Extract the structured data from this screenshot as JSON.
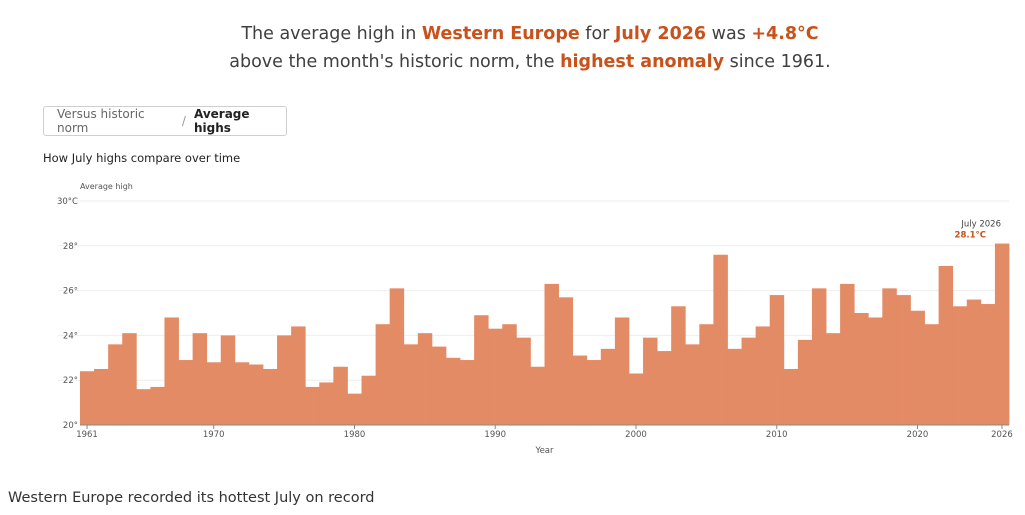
{
  "headline": {
    "part1": "The average high in ",
    "region": "Western Europe",
    "part2": " for ",
    "month": "July 2026",
    "part3": " was ",
    "anomaly": "+4.8°C",
    "part4": "above the month's historic norm, the ",
    "highest": "highest anomaly",
    "part5": " since 1961."
  },
  "toggle": {
    "option1": "Versus historic norm",
    "separator": "/",
    "option2": "Average highs"
  },
  "chart_title": "How July highs compare over time",
  "footer": "Western Europe recorded its hottest July on record",
  "colors": {
    "bar": "#e38b65",
    "accent": "#c8511c",
    "grid": "#eeeeee"
  },
  "chart_data": {
    "type": "bar",
    "ylabel": "Average high",
    "xlabel": "Year",
    "ylim": [
      20,
      30
    ],
    "yticks": [
      {
        "value": 20,
        "label": "20°"
      },
      {
        "value": 22,
        "label": "22°"
      },
      {
        "value": 24,
        "label": "24°"
      },
      {
        "value": 26,
        "label": "26°"
      },
      {
        "value": 28,
        "label": "28°"
      },
      {
        "value": 30,
        "label": "30°C"
      }
    ],
    "xticks": [
      "1961",
      "1970",
      "1980",
      "1990",
      "2000",
      "2010",
      "2020",
      "2026"
    ],
    "annotation": {
      "label": "July 2026",
      "value_label": "28.1°C"
    },
    "years": [
      1961,
      1962,
      1963,
      1964,
      1965,
      1966,
      1967,
      1968,
      1969,
      1970,
      1971,
      1972,
      1973,
      1974,
      1975,
      1976,
      1977,
      1978,
      1979,
      1980,
      1981,
      1982,
      1983,
      1984,
      1985,
      1986,
      1987,
      1988,
      1989,
      1990,
      1991,
      1992,
      1993,
      1994,
      1995,
      1996,
      1997,
      1998,
      1999,
      2000,
      2001,
      2002,
      2003,
      2004,
      2005,
      2006,
      2007,
      2008,
      2009,
      2010,
      2011,
      2012,
      2013,
      2014,
      2015,
      2016,
      2017,
      2018,
      2019,
      2020,
      2021,
      2022,
      2023,
      2024,
      2025,
      2026
    ],
    "values": [
      22.4,
      22.5,
      23.6,
      24.1,
      21.6,
      21.7,
      24.8,
      22.9,
      24.1,
      22.8,
      24.0,
      22.8,
      22.7,
      22.5,
      24.0,
      24.4,
      21.7,
      21.9,
      22.6,
      21.4,
      22.2,
      24.5,
      26.1,
      23.6,
      24.1,
      23.5,
      23.0,
      22.9,
      24.9,
      24.3,
      24.5,
      23.9,
      22.6,
      26.3,
      25.7,
      23.1,
      22.9,
      23.4,
      24.8,
      22.3,
      23.9,
      23.3,
      25.3,
      23.6,
      24.5,
      27.6,
      23.4,
      23.9,
      24.4,
      25.8,
      22.5,
      23.8,
      26.1,
      24.1,
      26.3,
      25.0,
      24.8,
      26.1,
      25.8,
      25.1,
      24.5,
      27.1,
      25.3,
      25.6,
      25.4,
      28.1
    ]
  }
}
